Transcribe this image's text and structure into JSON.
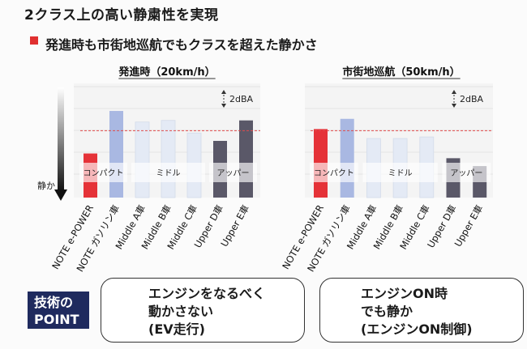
{
  "title": "2クラス上の高い静粛性を実現",
  "bullet": "発進時も市街地巡航でもクラスを超えた静かさ",
  "y_axis_label": "静か",
  "colors": {
    "note_epower": "#e53238",
    "note_gas": "#a9b8e2",
    "middle": "#e4eaf5",
    "upper": "#5a5868",
    "reference_line": "#e04a4a"
  },
  "chart_data": [
    {
      "type": "bar",
      "title": "発進時（20km/h）",
      "scale_note": "2dBA",
      "categories": [
        "NOTE e-POWER",
        "NOTE ガソリン車",
        "Middle A車",
        "Middle B車",
        "Middle C車",
        "Upper D車",
        "Upper E車"
      ],
      "values": [
        -2.9,
        2.5,
        1.1,
        1.3,
        -0.3,
        -1.3,
        1.3
      ],
      "ylim": [
        -8.5,
        6
      ],
      "reference_value": 0,
      "group_labels": [
        {
          "label": "コンパクト",
          "from": 0,
          "to": 1
        },
        {
          "label": "ミドル",
          "from": 2,
          "to": 4
        },
        {
          "label": "アッパー",
          "from": 5,
          "to": 6
        }
      ]
    },
    {
      "type": "bar",
      "title": "市街地巡航（50km/h）",
      "scale_note": "2dBA",
      "categories": [
        "NOTE e-POWER",
        "NOTE ガソリン車",
        "Middle A車",
        "Middle B車",
        "Middle C車",
        "Upper D車",
        "Upper E車"
      ],
      "values": [
        0.2,
        1.5,
        -1.0,
        -1.0,
        -0.8,
        -3.5,
        -4.5
      ],
      "ylim": [
        -8.5,
        6
      ],
      "reference_value": 0,
      "group_labels": [
        {
          "label": "コンパクト",
          "from": 0,
          "to": 1
        },
        {
          "label": "ミドル",
          "from": 2,
          "to": 4
        },
        {
          "label": "アッパー",
          "from": 5,
          "to": 6
        }
      ]
    }
  ],
  "point_badge": {
    "line1": "技術の",
    "line2": "POINT"
  },
  "boxes": [
    {
      "line1": "エンジンをなるべく",
      "line2": "動かさない",
      "line3": "(EV走行)"
    },
    {
      "line1": "エンジンON時",
      "line2": "でも静か",
      "line3": "(エンジンON制御)"
    }
  ]
}
